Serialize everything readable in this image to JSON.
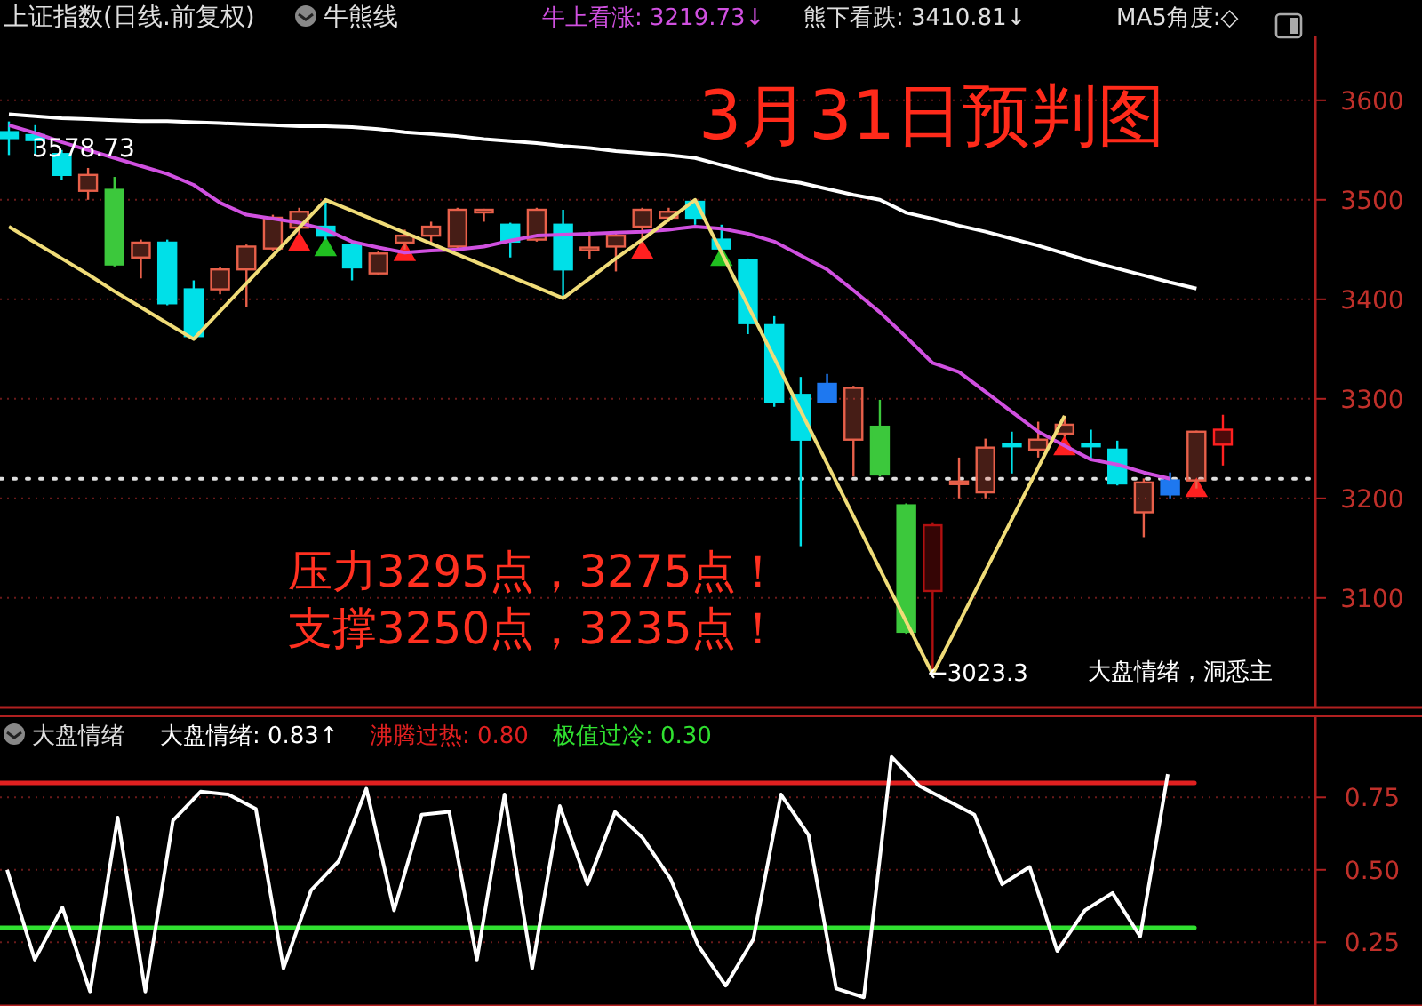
{
  "chart_data": [
    {
      "type": "candlestick",
      "title": "上证指数(日线.前复权)",
      "subtitle": "3月31日预判图",
      "categories": [
        null,
        null,
        null,
        null,
        null,
        null,
        null,
        null,
        null,
        null,
        null,
        null,
        null,
        null,
        null,
        null,
        null,
        null,
        null,
        null,
        null,
        null,
        null,
        null,
        null,
        null,
        null,
        null,
        null,
        null,
        null,
        null,
        null,
        null,
        null,
        null,
        null,
        null,
        null,
        null,
        null,
        null,
        null,
        null,
        null,
        null,
        null
      ],
      "ohlc": [
        [
          3568,
          3578.73,
          3545,
          3562
        ],
        [
          3565,
          3575,
          3545,
          3560
        ],
        [
          3546,
          3550,
          3520,
          3525
        ],
        [
          3509,
          3532,
          3500,
          3525
        ],
        [
          3510,
          3523,
          3433,
          3435
        ],
        [
          3442,
          3460,
          3421,
          3457
        ],
        [
          3457,
          3460,
          3394,
          3396
        ],
        [
          3410,
          3419,
          3360,
          3363
        ],
        [
          3410,
          3432,
          3405,
          3430
        ],
        [
          3430,
          3455,
          3392,
          3453
        ],
        [
          3451,
          3485,
          3448,
          3482
        ],
        [
          3472,
          3492,
          3465,
          3488
        ],
        [
          3473,
          3500,
          3460,
          3464
        ],
        [
          3455,
          3458,
          3419,
          3432
        ],
        [
          3426,
          3448,
          3424,
          3446
        ],
        [
          3457,
          3470,
          3450,
          3464
        ],
        [
          3464,
          3478,
          3455,
          3473
        ],
        [
          3453,
          3492,
          3451,
          3490
        ],
        [
          3488,
          3491,
          3478,
          3490
        ],
        [
          3475,
          3477,
          3442,
          3458
        ],
        [
          3460,
          3492,
          3458,
          3490
        ],
        [
          3475,
          3490,
          3401,
          3430
        ],
        [
          3450,
          3468,
          3440,
          3452
        ],
        [
          3453,
          3466,
          3428,
          3464
        ],
        [
          3473,
          3492,
          3455,
          3490
        ],
        [
          3482,
          3492,
          3478,
          3488
        ],
        [
          3498,
          3500,
          3475,
          3482
        ],
        [
          3460,
          3475,
          3445,
          3451
        ],
        [
          3439,
          3441,
          3365,
          3376
        ],
        [
          3374,
          3383,
          3292,
          3297
        ],
        [
          3304,
          3322,
          3152,
          3259
        ],
        [
          3315,
          3325,
          3296,
          3297
        ],
        [
          3259,
          3313,
          3222,
          3311
        ],
        [
          3272,
          3299,
          3222,
          3224
        ],
        [
          3193,
          3195,
          3064,
          3066
        ],
        [
          3107,
          3176,
          3023.3,
          3173
        ],
        [
          3216,
          3241,
          3200,
          3217
        ],
        [
          3206,
          3260,
          3200,
          3251
        ],
        [
          3255,
          3267,
          3225,
          3253
        ],
        [
          3249,
          3277,
          3241,
          3259
        ],
        [
          3265,
          3283,
          3262,
          3274
        ],
        [
          3255,
          3269,
          3240,
          3253
        ],
        [
          3249,
          3258,
          3213,
          3215
        ],
        [
          3186,
          3220,
          3161,
          3216
        ],
        [
          3218,
          3226,
          3200,
          3204
        ],
        [
          3218,
          3268,
          3210,
          3267
        ],
        [
          3254,
          3284,
          3233,
          3269
        ]
      ],
      "colors": [
        "#00e0e8",
        "#00e0e8",
        "#00e0e8",
        "#e8604a",
        "#3cc83c",
        "#e8604a",
        "#00e0e8",
        "#00e0e8",
        "#e8604a",
        "#e8604a",
        "#e8604a",
        "#e8604a",
        "#00e0e8",
        "#00e0e8",
        "#e8604a",
        "#e8604a",
        "#e8604a",
        "#e8604a",
        "#e8604a",
        "#00e0e8",
        "#e8604a",
        "#00e0e8",
        "#e8604a",
        "#e8604a",
        "#e8604a",
        "#e8604a",
        "#00e0e8",
        "#00e0e8",
        "#00e0e8",
        "#00e0e8",
        "#00e0e8",
        "#1e78f0",
        "#e8604a",
        "#3cc83c",
        "#3cc83c",
        "#b01010",
        "#e8604a",
        "#e8604a",
        "#00e0e8",
        "#e8604a",
        "#e8604a",
        "#00e0e8",
        "#00e0e8",
        "#e8604a",
        "#1e78f0",
        "#e8604a",
        "#ff2020"
      ],
      "series": [
        {
          "type": "line",
          "color": "#ffffff",
          "values": [
            3586,
            3584,
            3582,
            3581,
            3580,
            3579,
            3579,
            3578,
            3577,
            3576,
            3575,
            3574,
            3574,
            3573,
            3571,
            3568,
            3566,
            3564,
            3561,
            3559,
            3557,
            3554,
            3552,
            3549,
            3547,
            3545,
            3542,
            3535,
            3528,
            3521,
            3517,
            3511,
            3505,
            3500,
            3487,
            3481,
            3474,
            3468,
            3461,
            3454,
            3446,
            3438,
            3431,
            3424,
            3417,
            3410.81,
            null
          ]
        },
        {
          "type": "line",
          "color": "#d050e0",
          "values": [
            3575,
            3567,
            3558,
            3550,
            3542,
            3534,
            3526,
            3515,
            3497,
            3485,
            3481,
            3477,
            3470,
            3458,
            3452,
            3447,
            3449,
            3450,
            3453,
            3459,
            3464,
            3465,
            3466,
            3467,
            3468,
            3470,
            3473,
            3471,
            3466,
            3458,
            3444,
            3430,
            3409,
            3387,
            3362,
            3336,
            3327,
            3307,
            3287,
            3267,
            3253,
            3239,
            3234,
            3226,
            3219.73,
            null,
            null
          ]
        },
        {
          "type": "line",
          "color": "#f0dc78",
          "values": [
            3473,
            3457,
            3441,
            3425,
            3408,
            3392,
            3376,
            3360,
            3388,
            3416,
            3444,
            3472,
            3500,
            3489,
            3478,
            3467,
            3456,
            3445,
            3434,
            3423,
            3412,
            3401,
            3421,
            3441,
            3460,
            3480,
            3500,
            3447,
            3394,
            3341,
            3288,
            3235,
            3182,
            3129,
            3076,
            3023.3,
            3075,
            3127,
            3179,
            3231,
            3283,
            null,
            null,
            null,
            null,
            null,
            null
          ]
        },
        {
          "type": "scatter",
          "marker": "triangle",
          "color": "#ff2020",
          "values": [
            null,
            null,
            null,
            null,
            null,
            null,
            null,
            null,
            null,
            null,
            null,
            3455,
            null,
            null,
            null,
            3445,
            null,
            null,
            null,
            null,
            null,
            null,
            null,
            null,
            3447,
            null,
            null,
            null,
            null,
            null,
            null,
            null,
            null,
            null,
            null,
            null,
            null,
            null,
            null,
            null,
            3250,
            null,
            null,
            null,
            null,
            3208,
            null
          ]
        },
        {
          "type": "scatter",
          "marker": "triangle",
          "color": "#20c020",
          "values": [
            null,
            null,
            null,
            null,
            null,
            null,
            null,
            null,
            null,
            null,
            null,
            null,
            3450,
            null,
            null,
            null,
            null,
            null,
            null,
            null,
            null,
            null,
            null,
            null,
            null,
            null,
            null,
            3440,
            null,
            null,
            null,
            null,
            null,
            null,
            null,
            null,
            null,
            null,
            null,
            null,
            null,
            null,
            null,
            null,
            null,
            null,
            null
          ]
        }
      ],
      "ref_lines": [
        {
          "axis": "y",
          "value": 3219.73,
          "color": "#dddddd",
          "line_style": "dotted"
        }
      ],
      "annotations": [
        "牛熊线",
        "牛上看涨: 3219.73↓",
        "熊下看跌: 3410.81↓",
        "MA5角度:◇",
        "压力3295点，3275点！",
        "支撑3250点，3235点！",
        "大盘情绪，洞悉主",
        "3578.73",
        "←3023.3"
      ],
      "ylim": [
        2990,
        3665
      ],
      "yticks": [
        3100,
        3200,
        3300,
        3400,
        3500,
        3600
      ],
      "grid": "y",
      "tick_labels": "y"
    },
    {
      "type": "line",
      "title": "大盘情绪",
      "categories": [
        null,
        null,
        null,
        null,
        null,
        null,
        null,
        null,
        null,
        null,
        null,
        null,
        null,
        null,
        null,
        null,
        null,
        null,
        null,
        null,
        null,
        null,
        null,
        null,
        null,
        null,
        null,
        null,
        null,
        null,
        null,
        null,
        null,
        null,
        null,
        null,
        null,
        null,
        null,
        null,
        null,
        null,
        null
      ],
      "series": [
        {
          "color": "#ffffff",
          "values": [
            0.5,
            0.19,
            0.37,
            0.08,
            0.68,
            0.08,
            0.67,
            0.77,
            0.76,
            0.71,
            0.16,
            0.43,
            0.53,
            0.78,
            0.36,
            0.69,
            0.7,
            0.19,
            0.76,
            0.16,
            0.72,
            0.45,
            0.7,
            0.61,
            0.47,
            0.24,
            0.1,
            0.26,
            0.76,
            0.62,
            0.09,
            0.06,
            0.89,
            0.79,
            0.74,
            0.69,
            0.45,
            0.51,
            0.22,
            0.36,
            0.42,
            0.27,
            0.83
          ]
        }
      ],
      "ref_lines": [
        {
          "axis": "y",
          "value": 0.8,
          "label": "沸腾过热: 0.80",
          "color": "#e02020",
          "line_style": "solid"
        },
        {
          "axis": "y",
          "value": 0.3,
          "label": "极值过冷: 0.30",
          "color": "#30e030",
          "line_style": "solid"
        }
      ],
      "annotations": [
        "大盘情绪: 0.83↑"
      ],
      "ylim": [
        0.03,
        1.03
      ],
      "yticks": [
        {
          "value": 0.25,
          "label": "0.25"
        },
        {
          "value": 0.5,
          "label": "0.50"
        },
        {
          "value": 0.75,
          "label": "0.75"
        }
      ],
      "grid": "y",
      "tick_labels": "y"
    }
  ]
}
